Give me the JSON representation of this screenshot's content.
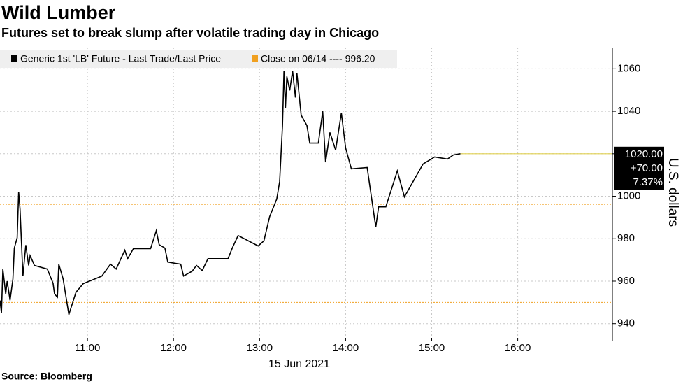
{
  "chart_data": {
    "type": "line",
    "title": "Wild Lumber",
    "subtitle": "Futures set to break slump after volatile trading day in Chicago",
    "source": "Source: Bloomberg",
    "xlabel": "15 Jun 2021",
    "ylabel": "U.S. dollars",
    "xlim": [
      "09:59",
      "17:06"
    ],
    "xticks": [
      "11:00",
      "12:00",
      "13:00",
      "14:00",
      "15:00",
      "16:00"
    ],
    "ylim": [
      932,
      1070
    ],
    "yticks": [
      940,
      960,
      980,
      1000,
      1020,
      1040,
      1060
    ],
    "grid": true,
    "x": [
      "09:59",
      "10:00",
      "10:01",
      "10:03",
      "10:04",
      "10:06",
      "10:08",
      "10:09",
      "10:11",
      "10:12",
      "10:13",
      "10:15",
      "10:17",
      "10:19",
      "10:20",
      "10:22",
      "10:23",
      "10:32",
      "10:36",
      "10:37",
      "10:39",
      "10:40",
      "10:43",
      "10:47",
      "10:52",
      "10:57",
      "11:10",
      "11:16",
      "11:20",
      "11:26",
      "11:28",
      "11:32",
      "11:44",
      "11:48",
      "11:50",
      "11:54",
      "11:56",
      "12:05",
      "12:07",
      "12:13",
      "12:16",
      "12:20",
      "12:24",
      "12:38",
      "12:41",
      "12:45",
      "12:59",
      "13:03",
      "13:07",
      "13:12",
      "13:14",
      "13:16",
      "13:17",
      "13:18",
      "13:19",
      "13:21",
      "13:23",
      "13:25",
      "13:26",
      "13:29",
      "13:33",
      "13:35",
      "13:41",
      "13:44",
      "13:46",
      "13:49",
      "13:53",
      "13:57",
      "14:00",
      "14:04",
      "14:15",
      "14:21",
      "14:23",
      "14:28",
      "14:36",
      "14:41",
      "14:54",
      "15:02",
      "15:11",
      "15:15",
      "15:20"
    ],
    "series": [
      {
        "name": "Generic 1st 'LB' Future - Last Trade/Last Price",
        "color": "#000000",
        "values": [
          950.9,
          945,
          965.7,
          954,
          960,
          951,
          961,
          975.6,
          980.5,
          1002,
          993.7,
          962.4,
          977,
          967.4,
          972,
          969,
          967.4,
          965.7,
          959,
          954,
          952.5,
          968,
          961,
          944.3,
          954.8,
          958.8,
          962.4,
          968,
          965.7,
          974.6,
          970.6,
          975.3,
          975.3,
          983.8,
          977.2,
          975.6,
          969,
          968,
          962.4,
          964.7,
          967.4,
          965,
          970.6,
          970.6,
          975.6,
          981.5,
          976.6,
          979,
          990.4,
          998.7,
          1006.9,
          1033.3,
          1059,
          1041.5,
          1056.4,
          1049.8,
          1059,
          1046.5,
          1058,
          1038.2,
          1033.3,
          1025,
          1025,
          1040,
          1016,
          1030,
          1021.7,
          1039.2,
          1022.7,
          1012.9,
          1013.5,
          985.5,
          995,
          995,
          1011.9,
          999.7,
          1015.2,
          1018.5,
          1017.5,
          1019.4,
          1020
        ]
      }
    ],
    "hlines": [
      {
        "label": "Close on 06/14 ---- 996.20",
        "value": 996.2,
        "color": "#f0a020"
      },
      {
        "value": 950,
        "color": "#f0a020"
      }
    ],
    "last_value": 1020,
    "last_color": "#e0d050",
    "last_label": [
      "1020.00",
      "+70.00",
      "7.37%"
    ]
  }
}
